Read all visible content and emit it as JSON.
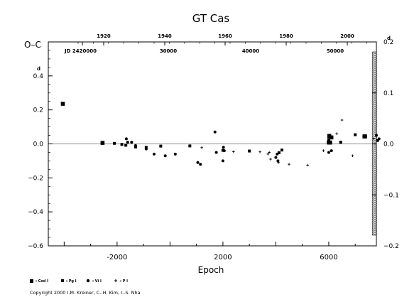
{
  "chart_data": {
    "type": "scatter",
    "title": "GT  Cas",
    "xlabel": "Epoch",
    "ylabel": "O–C",
    "right_ylabel": "d",
    "xlim": [
      -4600,
      7800
    ],
    "ylim": [
      -0.6,
      0.6
    ],
    "right_ylim": [
      -0.2,
      0.2
    ],
    "grid": false,
    "zero_line": true,
    "shaded_region_start": 7650,
    "bottom_x_ticks": [
      "-2000",
      "2000",
      "6000"
    ],
    "bottom_x_tick_values": [
      -2000,
      2000,
      6000
    ],
    "left_y_ticks": [
      "0.4",
      "0.2",
      "0.0",
      "−0.2",
      "−0.4",
      "−0.6"
    ],
    "left_y_tick_values": [
      0.4,
      0.2,
      0.0,
      -0.2,
      -0.4,
      -0.6
    ],
    "left_top_superscript": "d",
    "right_y_ticks": [
      "0.2",
      "0.1",
      "0.0",
      "−0.1",
      "−0.2"
    ],
    "right_y_tick_values": [
      0.2,
      0.1,
      0.0,
      -0.1,
      -0.2
    ],
    "top_year_ticks": [
      "1920",
      "1940",
      "1960",
      "1980",
      "2000"
    ],
    "top_jd_ticks": [
      "JD  2420000",
      "30000",
      "40000",
      "50000"
    ],
    "series": [
      {
        "name": "Cod I",
        "marker": "square-large",
        "x": [
          -4050,
          -2550,
          6000,
          6020,
          6100,
          6050,
          7350,
          7370
        ],
        "y": [
          0.236,
          0.006,
          0.008,
          0.047,
          0.038,
          0.008,
          0.044,
          0.044
        ]
      },
      {
        "name": "Pg I",
        "marker": "square-small",
        "x": [
          -2100,
          -1820,
          -1670,
          -1300,
          -900,
          -350,
          750,
          2000,
          3000,
          4120,
          4230,
          6000,
          6060,
          6450,
          7000
        ],
        "y": [
          0.003,
          -0.003,
          -0.008,
          -0.018,
          -0.02,
          -0.013,
          -0.012,
          -0.038,
          -0.042,
          -0.052,
          -0.036,
          0.026,
          0.005,
          0.01,
          0.054
        ]
      },
      {
        "name": "Vi I",
        "marker": "dot",
        "x": [
          -1650,
          -1600,
          -1450,
          -1300,
          -900,
          -600,
          -180,
          200,
          1050,
          1150,
          1700,
          1750,
          2000,
          2020,
          2050,
          4000,
          4050,
          4080,
          6000,
          6100,
          7800,
          7850,
          7900
        ],
        "y": [
          0.03,
          0.01,
          0.01,
          -0.01,
          -0.03,
          -0.06,
          -0.07,
          -0.06,
          -0.11,
          -0.12,
          0.07,
          -0.05,
          -0.1,
          -0.02,
          -0.04,
          -0.08,
          -0.06,
          -0.1,
          -0.05,
          -0.04,
          0.05,
          0.02,
          0.03
        ]
      },
      {
        "name": "P I",
        "marker": "plus",
        "x": [
          1200,
          2400,
          3400,
          3700,
          3750,
          3800,
          4100,
          4500,
          5200,
          5800,
          6300,
          6500,
          6900,
          7700
        ],
        "y": [
          -0.022,
          -0.046,
          -0.047,
          -0.06,
          -0.05,
          -0.09,
          -0.11,
          -0.12,
          -0.125,
          -0.04,
          0.06,
          0.14,
          -0.07,
          0.03
        ]
      }
    ],
    "legend": {
      "placement": "bottom-left",
      "entries": [
        ": Cod I",
        ": Pg I",
        ": Vi I",
        ": P I"
      ]
    }
  },
  "footer": {
    "copyright": "Copyright 2000 I.M. Kreiner, C.-H. Kim, I.-S. Nha"
  }
}
